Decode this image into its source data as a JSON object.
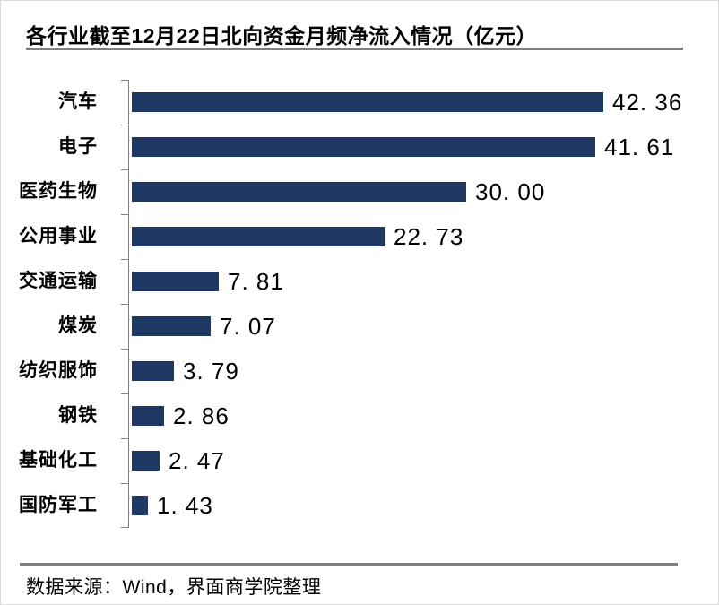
{
  "title": "各行业截至12月22日北向资金月频净流入情况（亿元）",
  "footer": {
    "text": "数据来源：Wind，界面商学院整理"
  },
  "colors": {
    "bar": "#1f3864",
    "divider": "#7f7f7f",
    "axis": "#808080",
    "text": "#000000",
    "page_border": "#d9d9d9"
  },
  "chart_data": {
    "type": "bar",
    "orientation": "horizontal",
    "title": "各行业截至12月22日北向资金月频净流入情况（亿元）",
    "xlabel": "",
    "ylabel": "",
    "categories": [
      "汽车",
      "电子",
      "医药生物",
      "公用事业",
      "交通运输",
      "煤炭",
      "纺织服饰",
      "钢铁",
      "基础化工",
      "国防军工"
    ],
    "values": [
      42.36,
      41.61,
      30.0,
      22.73,
      7.81,
      7.07,
      3.79,
      2.86,
      2.47,
      1.43
    ],
    "value_labels": [
      "42. 36",
      "41. 61",
      "30. 00",
      "22. 73",
      "7. 81",
      "7. 07",
      "3. 79",
      "2. 86",
      "2. 47",
      "1. 43"
    ],
    "xlim": [
      0,
      45
    ],
    "grid": false,
    "legend": false,
    "data_labels": true,
    "sort_order": "descending",
    "unit": "亿元"
  }
}
